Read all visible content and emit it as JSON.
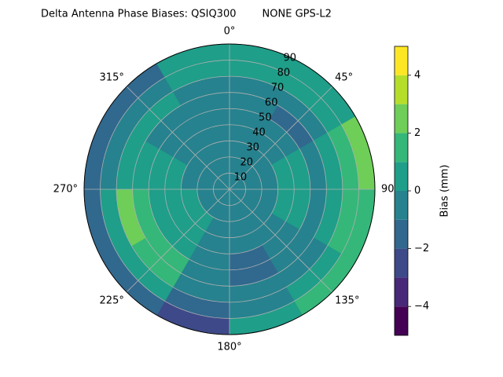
{
  "chart_data": {
    "type": "polar-contour",
    "title": "Delta Antenna Phase Biases: QSIQ300        NONE GPS-L2",
    "azimuth_edges": [
      0,
      30,
      60,
      90,
      120,
      150,
      180,
      210,
      240,
      270,
      300,
      330,
      360
    ],
    "zenith_edges": [
      0,
      10,
      20,
      30,
      40,
      50,
      60,
      70,
      80,
      90
    ],
    "values": [
      [
        -0.5,
        -0.5,
        -0.5,
        -0.5,
        -0.5,
        -0.5,
        -0.5,
        0.5,
        0.5
      ],
      [
        -0.5,
        -0.5,
        -0.5,
        -0.5,
        -0.5,
        -1.5,
        -0.5,
        0.5,
        0.5
      ],
      [
        -0.5,
        -0.5,
        -0.5,
        0.5,
        0.5,
        -0.5,
        0.5,
        1.5,
        2.5
      ],
      [
        -0.5,
        -0.5,
        -0.5,
        0.5,
        0.5,
        -0.5,
        0.5,
        1.5,
        1.5
      ],
      [
        -0.5,
        -0.5,
        -0.5,
        -0.5,
        -0.5,
        -0.5,
        -0.5,
        0.5,
        1.5
      ],
      [
        -0.5,
        -0.5,
        -0.5,
        -0.5,
        -1.5,
        -1.5,
        -0.5,
        -0.5,
        0.5
      ],
      [
        -0.5,
        -0.5,
        -0.5,
        -0.5,
        -0.5,
        -0.5,
        -0.5,
        -1.5,
        -2.5
      ],
      [
        -0.5,
        -0.5,
        0.5,
        0.5,
        0.5,
        1.5,
        1.5,
        0.5,
        -1.5
      ],
      [
        -0.5,
        -0.5,
        0.5,
        0.5,
        0.5,
        1.5,
        2.5,
        0.5,
        -1.5
      ],
      [
        -0.5,
        -0.5,
        -0.5,
        0.5,
        0.5,
        0.5,
        0.5,
        -0.5,
        -1.5
      ],
      [
        -0.5,
        -0.5,
        -0.5,
        -0.5,
        -0.5,
        -0.5,
        0.5,
        -0.5,
        -1.5
      ],
      [
        -0.5,
        -0.5,
        -0.5,
        -0.5,
        -0.5,
        -0.5,
        -0.5,
        0.5,
        0.5
      ]
    ],
    "rlim": [
      0,
      90
    ],
    "rticks": [
      10,
      20,
      30,
      40,
      50,
      60,
      70,
      80,
      90
    ],
    "thetaticks": [
      {
        "value": 0,
        "label": "0°"
      },
      {
        "value": 45,
        "label": "45°"
      },
      {
        "value": 90,
        "label": "90°"
      },
      {
        "value": 135,
        "label": "135°"
      },
      {
        "value": 180,
        "label": "180°"
      },
      {
        "value": 225,
        "label": "225°"
      },
      {
        "value": 270,
        "label": "270°"
      },
      {
        "value": 315,
        "label": "315°"
      }
    ],
    "levels": [
      -5,
      -4,
      -3,
      -2,
      -1,
      0,
      1,
      2,
      3,
      4,
      5
    ],
    "colors": [
      "#440154",
      "#482878",
      "#3e4989",
      "#31688e",
      "#26828e",
      "#1f9e89",
      "#35b779",
      "#6ece58",
      "#b5de2b",
      "#fde725"
    ],
    "colorbar_label": "Bias (mm)",
    "colorbar_lim": [
      -5,
      5
    ],
    "colorbar_ticks": [
      {
        "value": -4,
        "label": "−4"
      },
      {
        "value": -2,
        "label": "−2"
      },
      0,
      2,
      4
    ],
    "grid": true
  }
}
